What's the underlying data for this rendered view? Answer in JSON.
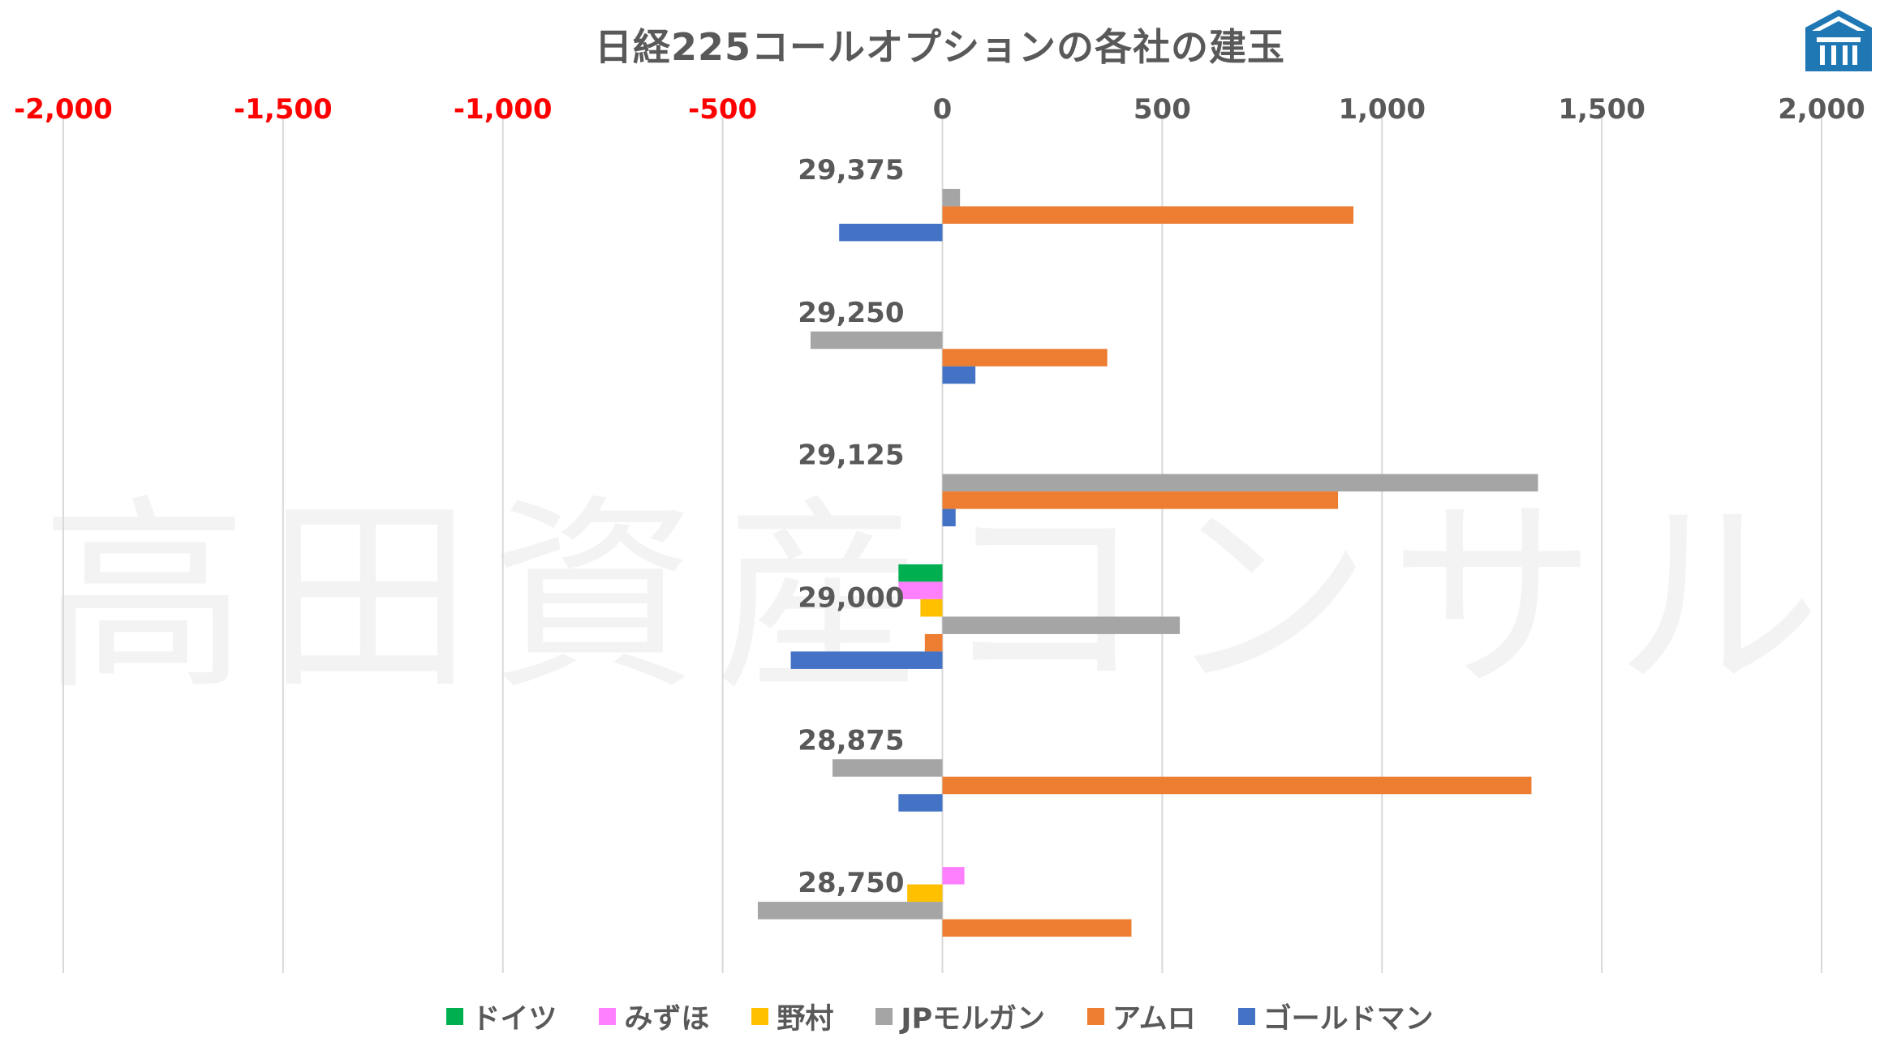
{
  "title": "日経225コールオプションの各社の建玉",
  "watermark": "高田資産コンサル",
  "logo_icon": "temple-roof-logo-icon",
  "chart_data": {
    "type": "bar",
    "orientation": "horizontal",
    "title": "日経225コールオプションの各社の建玉",
    "xlim": [
      -2000,
      2000
    ],
    "x_ticks": [
      -2000,
      -1500,
      -1000,
      -500,
      0,
      500,
      1000,
      1500,
      2000
    ],
    "x_tick_labels": [
      "-2,000",
      "-1,500",
      "-1,000",
      "-500",
      "0",
      "500",
      "1,000",
      "1,500",
      "2,000"
    ],
    "x_axis_position": "top",
    "negative_tick_color": "#ff0000",
    "positive_tick_color": "#595959",
    "grid": "vertical",
    "legend_position": "bottom",
    "categories": [
      "29,375",
      "29,250",
      "29,125",
      "29,000",
      "28,875",
      "28,750"
    ],
    "series": [
      {
        "name": "ドイツ",
        "color": "#00b050",
        "values": [
          0,
          0,
          0,
          -100,
          0,
          0
        ]
      },
      {
        "name": "みずほ",
        "color": "#ff80ff",
        "values": [
          0,
          0,
          0,
          -100,
          0,
          50
        ]
      },
      {
        "name": "野村",
        "color": "#ffc000",
        "values": [
          0,
          0,
          0,
          -50,
          0,
          -80
        ]
      },
      {
        "name": "JPモルガン",
        "color": "#a5a5a5",
        "values": [
          40,
          -300,
          1355,
          540,
          -250,
          -420
        ]
      },
      {
        "name": "アムロ",
        "color": "#ed7d31",
        "values": [
          935,
          375,
          900,
          -40,
          1340,
          430
        ]
      },
      {
        "name": "ゴールドマン",
        "color": "#4472c4",
        "values": [
          -235,
          75,
          30,
          -345,
          -100,
          0
        ]
      }
    ]
  }
}
